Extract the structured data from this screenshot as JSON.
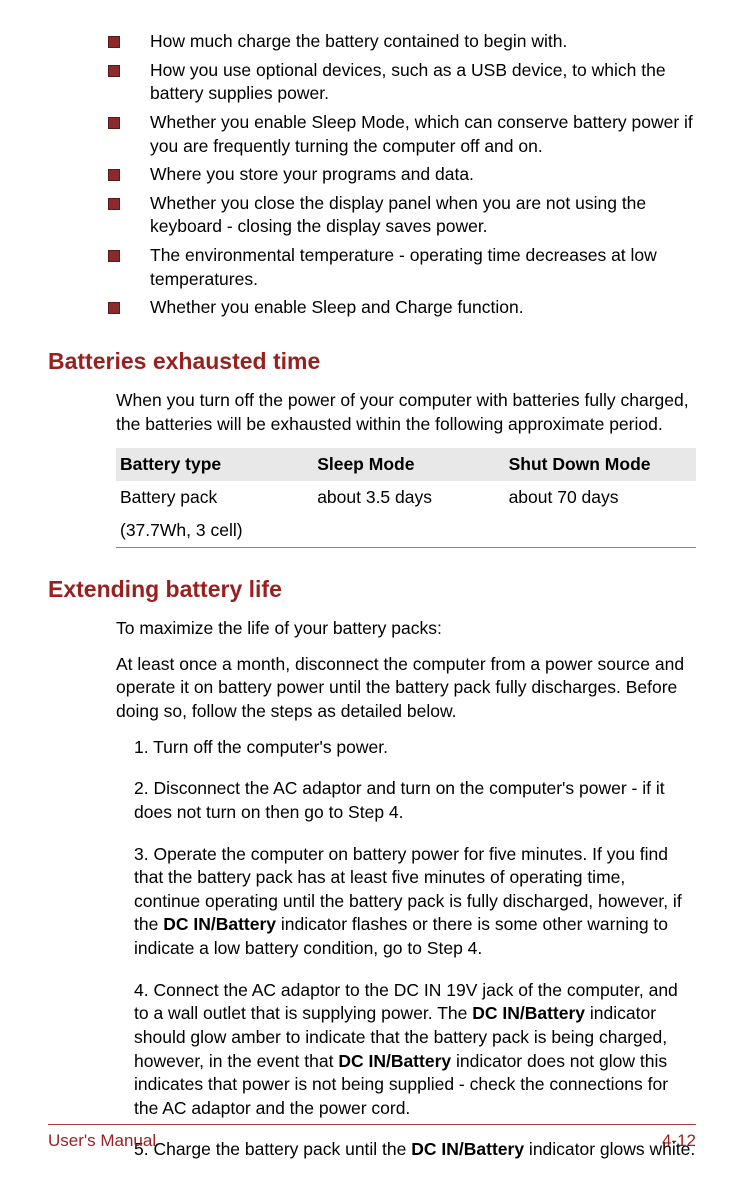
{
  "colors": {
    "heading": "#9a1f1f",
    "bullet_fill": "#8a2a2a",
    "bullet_border": "#5a1a1a",
    "footer_rule": "#b04040",
    "th_bg": "#e8e8e8",
    "text": "#000000",
    "background": "#ffffff"
  },
  "typography": {
    "body_fontsize_pt": 13,
    "heading_fontsize_pt": 17,
    "font_family": "Arial"
  },
  "bullets": [
    "How much charge the battery contained to begin with.",
    "How you use optional devices, such as a USB device, to which the battery supplies power.",
    "Whether you enable Sleep Mode, which can conserve battery power if you are frequently turning the computer off and on.",
    "Where you store your programs and data.",
    "Whether you close the display panel when you are not using the keyboard - closing the display saves power.",
    "The environmental temperature - operating time decreases at low temperatures.",
    "Whether you enable Sleep and Charge function."
  ],
  "section1": {
    "heading": "Batteries exhausted time",
    "intro": "When you turn off the power of your computer with batteries fully charged, the batteries will be exhausted within the following approximate period.",
    "table": {
      "columns": [
        "Battery type",
        "Sleep Mode",
        "Shut Down Mode"
      ],
      "rows": [
        [
          "Battery pack",
          "about 3.5 days",
          "about 70 days"
        ],
        [
          "(37.7Wh, 3 cell)",
          "",
          ""
        ]
      ],
      "col_widths_pct": [
        34,
        33,
        33
      ]
    }
  },
  "section2": {
    "heading": "Extending battery life",
    "intro1": "To maximize the life of your battery packs:",
    "intro2": "At least once a month, disconnect the computer from a power source and operate it on battery power until the battery pack fully discharges. Before doing so, follow the steps as detailed below.",
    "steps": [
      {
        "text": "1. Turn off the computer's power."
      },
      {
        "text": "2. Disconnect the AC adaptor and turn on the computer's power - if it does not turn on then go to Step 4."
      },
      {
        "html": "3. Operate the computer on battery power for five minutes. If you find that the battery pack has at least five minutes of operating time, continue operating until the battery pack is fully discharged, however, if the <b>DC IN/Battery</b> indicator flashes or there is some other warning to indicate a low battery condition, go to Step 4."
      },
      {
        "html": "4. Connect the AC adaptor to the DC IN 19V jack of the computer, and to a wall outlet that is supplying power. The <b>DC IN/Battery</b> indicator should glow amber to indicate that the battery pack is being charged, however, in the event that <b>DC IN/Battery</b> indicator does not glow this indicates that power is not being supplied - check the connections for the AC adaptor and the power cord."
      },
      {
        "html": "5. Charge the battery pack until the <b>DC IN/Battery</b> indicator glows white."
      }
    ]
  },
  "footer": {
    "left": "User's Manual",
    "right": "4-12"
  }
}
